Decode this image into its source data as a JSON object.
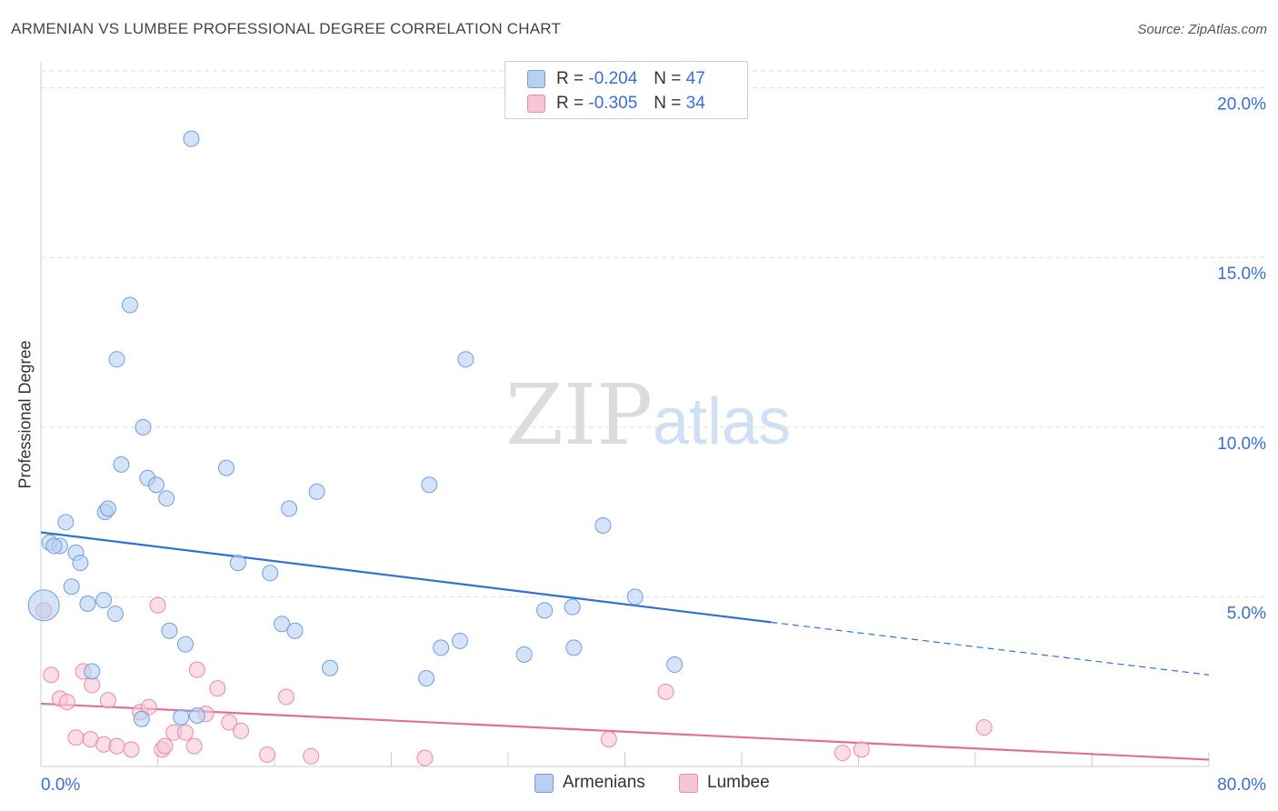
{
  "title": "ARMENIAN VS LUMBEE PROFESSIONAL DEGREE CORRELATION CHART",
  "source": "Source: ZipAtlas.com",
  "watermark": {
    "zip": "ZIP",
    "atlas": "atlas"
  },
  "colors": {
    "armenian_fill": "#b7d0f2",
    "armenian_stroke": "#6f9fe0",
    "armenian_line": "#2f72d4",
    "lumbee_fill": "#f7c6d6",
    "lumbee_stroke": "#e98aab",
    "lumbee_line": "#e0709b",
    "axis_text": "#3a6fd0"
  },
  "legend": {
    "armenian": {
      "r_label": "R =",
      "r_value": "-0.204",
      "n_label": "N =",
      "n_value": "47"
    },
    "lumbee": {
      "r_label": "R =",
      "r_value": "-0.305",
      "n_label": "N =",
      "n_value": "34"
    }
  },
  "bottom_legend": {
    "armenian": "Armenians",
    "lumbee": "Lumbee"
  },
  "chart_data": {
    "type": "scatter",
    "title": "ARMENIAN VS LUMBEE PROFESSIONAL DEGREE CORRELATION CHART",
    "xlabel": "",
    "ylabel": "Professional Degree",
    "xlim": [
      0,
      80
    ],
    "ylim": [
      0,
      20.5
    ],
    "x_tick_labels": [
      "0.0%",
      "80.0%"
    ],
    "y_ticks": [
      5,
      10,
      15,
      20
    ],
    "y_tick_labels": [
      "5.0%",
      "10.0%",
      "15.0%",
      "20.0%"
    ],
    "grid": true,
    "series": [
      {
        "name": "Armenians",
        "r": -0.204,
        "n": 47,
        "trend": {
          "x0": 0,
          "y0": 6.9,
          "x1": 50,
          "y1": 4.25,
          "dashed_to_x": 80,
          "dashed_to_y": 2.7
        },
        "points": [
          [
            0.6,
            6.6
          ],
          [
            1.3,
            6.5
          ],
          [
            1.7,
            7.2
          ],
          [
            2.4,
            6.3
          ],
          [
            2.7,
            6.0
          ],
          [
            2.1,
            5.3
          ],
          [
            3.2,
            4.8
          ],
          [
            4.4,
            7.5
          ],
          [
            4.6,
            7.6
          ],
          [
            4.3,
            4.9
          ],
          [
            5.1,
            4.5
          ],
          [
            5.5,
            8.9
          ],
          [
            5.2,
            12.0
          ],
          [
            6.1,
            13.6
          ],
          [
            7.0,
            10.0
          ],
          [
            7.3,
            8.5
          ],
          [
            7.9,
            8.3
          ],
          [
            8.6,
            7.9
          ],
          [
            8.8,
            4.0
          ],
          [
            9.9,
            3.6
          ],
          [
            10.3,
            18.5
          ],
          [
            12.7,
            8.8
          ],
          [
            13.5,
            6.0
          ],
          [
            15.7,
            5.7
          ],
          [
            16.5,
            4.2
          ],
          [
            17.4,
            4.0
          ],
          [
            17.0,
            7.6
          ],
          [
            18.9,
            8.1
          ],
          [
            19.8,
            2.9
          ],
          [
            26.6,
            8.3
          ],
          [
            29.1,
            12.0
          ],
          [
            27.4,
            3.5
          ],
          [
            28.7,
            3.7
          ],
          [
            26.4,
            2.6
          ],
          [
            33.1,
            3.3
          ],
          [
            34.5,
            4.6
          ],
          [
            36.4,
            4.7
          ],
          [
            36.5,
            3.5
          ],
          [
            38.5,
            7.1
          ],
          [
            40.7,
            5.0
          ],
          [
            43.4,
            3.0
          ],
          [
            3.5,
            2.8
          ],
          [
            6.9,
            1.4
          ],
          [
            9.6,
            1.45
          ],
          [
            10.7,
            1.5
          ],
          [
            0.2,
            4.75
          ],
          [
            0.9,
            6.5
          ]
        ]
      },
      {
        "name": "Lumbee",
        "r": -0.305,
        "n": 34,
        "trend": {
          "x0": 0,
          "y0": 1.85,
          "x1": 80,
          "y1": 0.2
        },
        "points": [
          [
            0.2,
            4.6
          ],
          [
            0.7,
            2.7
          ],
          [
            1.3,
            2.0
          ],
          [
            1.8,
            1.9
          ],
          [
            2.4,
            0.85
          ],
          [
            2.9,
            2.8
          ],
          [
            3.5,
            2.4
          ],
          [
            3.4,
            0.8
          ],
          [
            4.3,
            0.65
          ],
          [
            4.6,
            1.95
          ],
          [
            5.2,
            0.6
          ],
          [
            6.2,
            0.5
          ],
          [
            6.8,
            1.6
          ],
          [
            7.4,
            1.75
          ],
          [
            8.0,
            4.75
          ],
          [
            8.3,
            0.5
          ],
          [
            8.5,
            0.6
          ],
          [
            9.1,
            1.0
          ],
          [
            9.9,
            1.0
          ],
          [
            10.5,
            0.6
          ],
          [
            10.7,
            2.85
          ],
          [
            11.3,
            1.55
          ],
          [
            12.1,
            2.3
          ],
          [
            12.9,
            1.3
          ],
          [
            13.7,
            1.05
          ],
          [
            15.5,
            0.35
          ],
          [
            16.8,
            2.05
          ],
          [
            18.5,
            0.3
          ],
          [
            26.3,
            0.25
          ],
          [
            38.9,
            0.8
          ],
          [
            42.8,
            2.2
          ],
          [
            54.9,
            0.4
          ],
          [
            56.2,
            0.5
          ],
          [
            64.6,
            1.15
          ]
        ]
      }
    ]
  }
}
